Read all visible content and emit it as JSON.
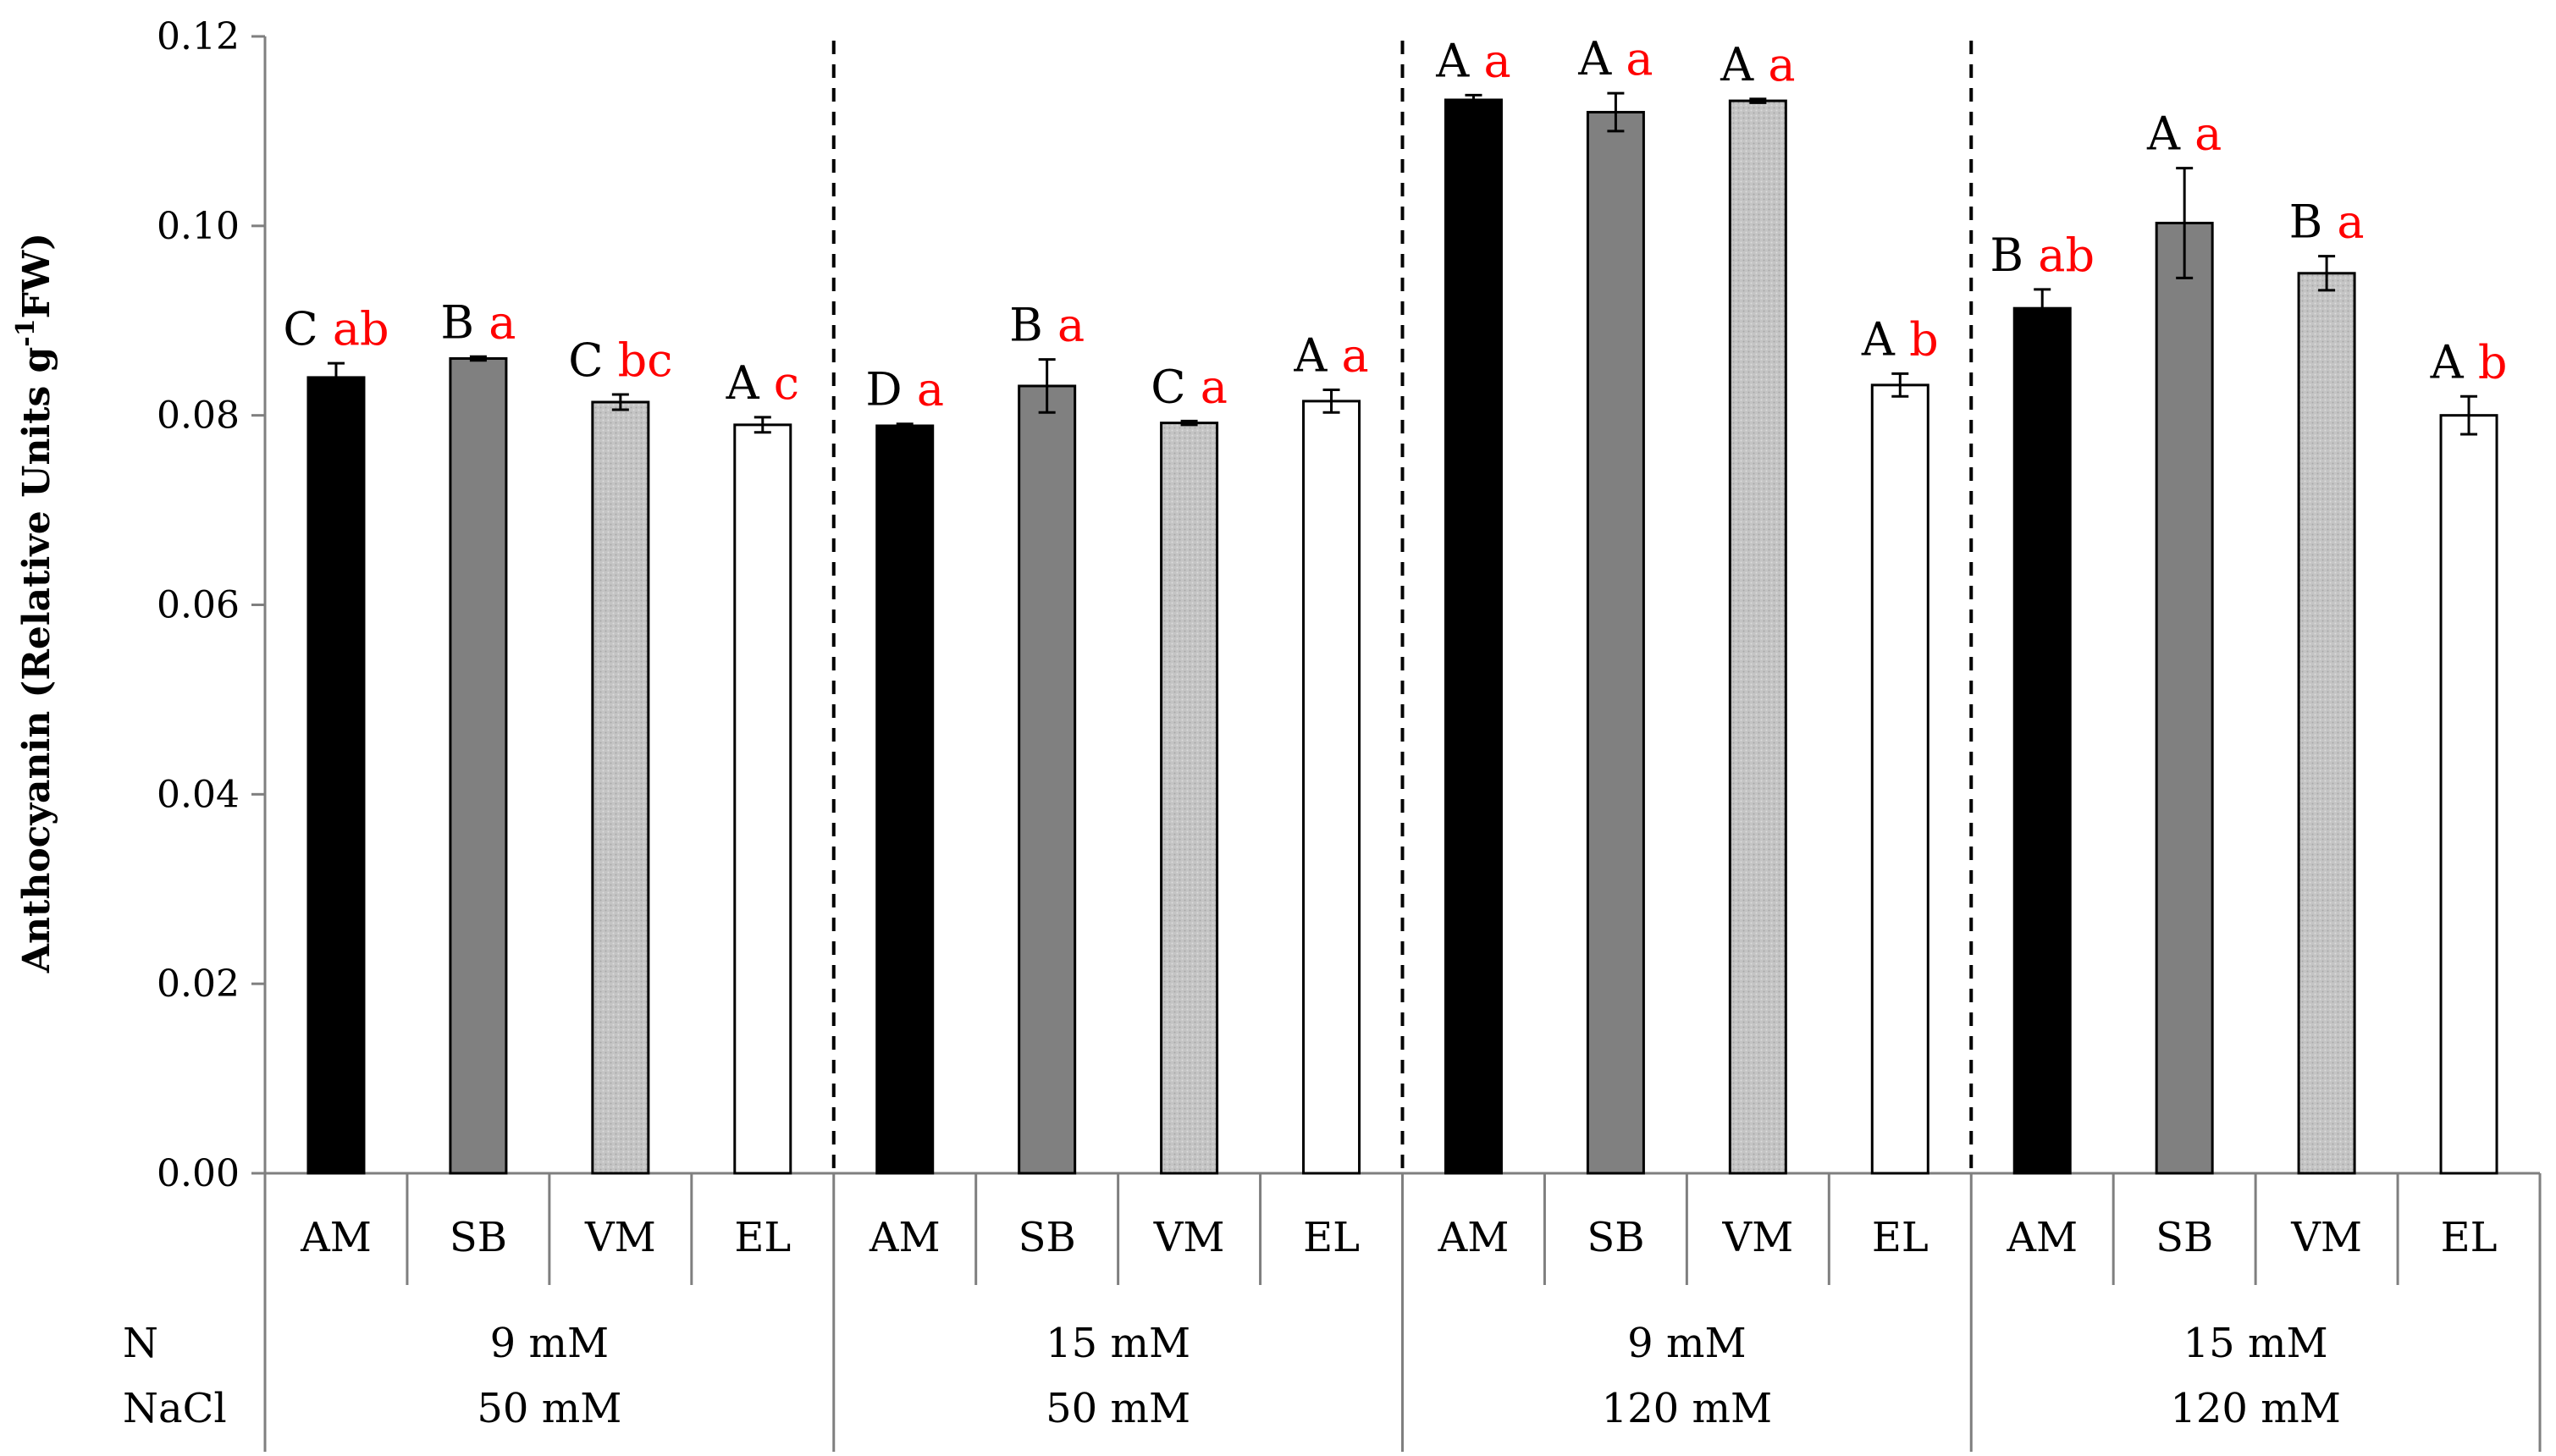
{
  "chart_data": {
    "type": "bar",
    "title": "",
    "ylabel": "Anthocyanin (Relative Units g",
    "ylabel_sup": "-1",
    "ylabel_tail": "FW)",
    "ylim": [
      0,
      0.12
    ],
    "yticks": [
      "0.00",
      "0.02",
      "0.04",
      "0.06",
      "0.08",
      "0.10",
      "0.12"
    ],
    "ytick_values": [
      0,
      0.02,
      0.04,
      0.06,
      0.08,
      0.1,
      0.12
    ],
    "row_labels": {
      "n": "N",
      "nacl": "NaCl"
    },
    "cultivar_colors": {
      "AM": "#000000",
      "SB": "#808080",
      "VM": "#c0c0c0",
      "EL": "#ffffff"
    },
    "groups": [
      {
        "n": "9 mM",
        "nacl": "50 mM",
        "bars": [
          {
            "cat": "AM",
            "value": 0.084,
            "err": 0.0015,
            "upper": "C",
            "lower": "ab"
          },
          {
            "cat": "SB",
            "value": 0.086,
            "err": 0.0002,
            "upper": "B",
            "lower": "a"
          },
          {
            "cat": "VM",
            "value": 0.0814,
            "err": 0.0008,
            "upper": "C",
            "lower": "bc"
          },
          {
            "cat": "EL",
            "value": 0.079,
            "err": 0.0008,
            "upper": "A",
            "lower": "c"
          }
        ]
      },
      {
        "n": "15 mM",
        "nacl": "50 mM",
        "bars": [
          {
            "cat": "AM",
            "value": 0.0789,
            "err": 0.0002,
            "upper": "D",
            "lower": "a"
          },
          {
            "cat": "SB",
            "value": 0.0831,
            "err": 0.0028,
            "upper": "B",
            "lower": "a"
          },
          {
            "cat": "VM",
            "value": 0.0792,
            "err": 0.0002,
            "upper": "C",
            "lower": "a"
          },
          {
            "cat": "EL",
            "value": 0.0815,
            "err": 0.0012,
            "upper": "A",
            "lower": "a"
          }
        ]
      },
      {
        "n": "9 mM",
        "nacl": "120 mM",
        "bars": [
          {
            "cat": "AM",
            "value": 0.1133,
            "err": 0.0005,
            "upper": "A",
            "lower": "a"
          },
          {
            "cat": "SB",
            "value": 0.112,
            "err": 0.002,
            "upper": "A",
            "lower": "a"
          },
          {
            "cat": "VM",
            "value": 0.1132,
            "err": 0.0002,
            "upper": "A",
            "lower": "a"
          },
          {
            "cat": "EL",
            "value": 0.0832,
            "err": 0.0012,
            "upper": "A",
            "lower": "b"
          }
        ]
      },
      {
        "n": "15 mM",
        "nacl": "120 mM",
        "bars": [
          {
            "cat": "AM",
            "value": 0.0913,
            "err": 0.002,
            "upper": "B",
            "lower": "ab"
          },
          {
            "cat": "SB",
            "value": 0.1003,
            "err": 0.0058,
            "upper": "A",
            "lower": "a"
          },
          {
            "cat": "VM",
            "value": 0.095,
            "err": 0.0018,
            "upper": "B",
            "lower": "a"
          },
          {
            "cat": "EL",
            "value": 0.08,
            "err": 0.002,
            "upper": "A",
            "lower": "b"
          }
        ]
      }
    ]
  }
}
